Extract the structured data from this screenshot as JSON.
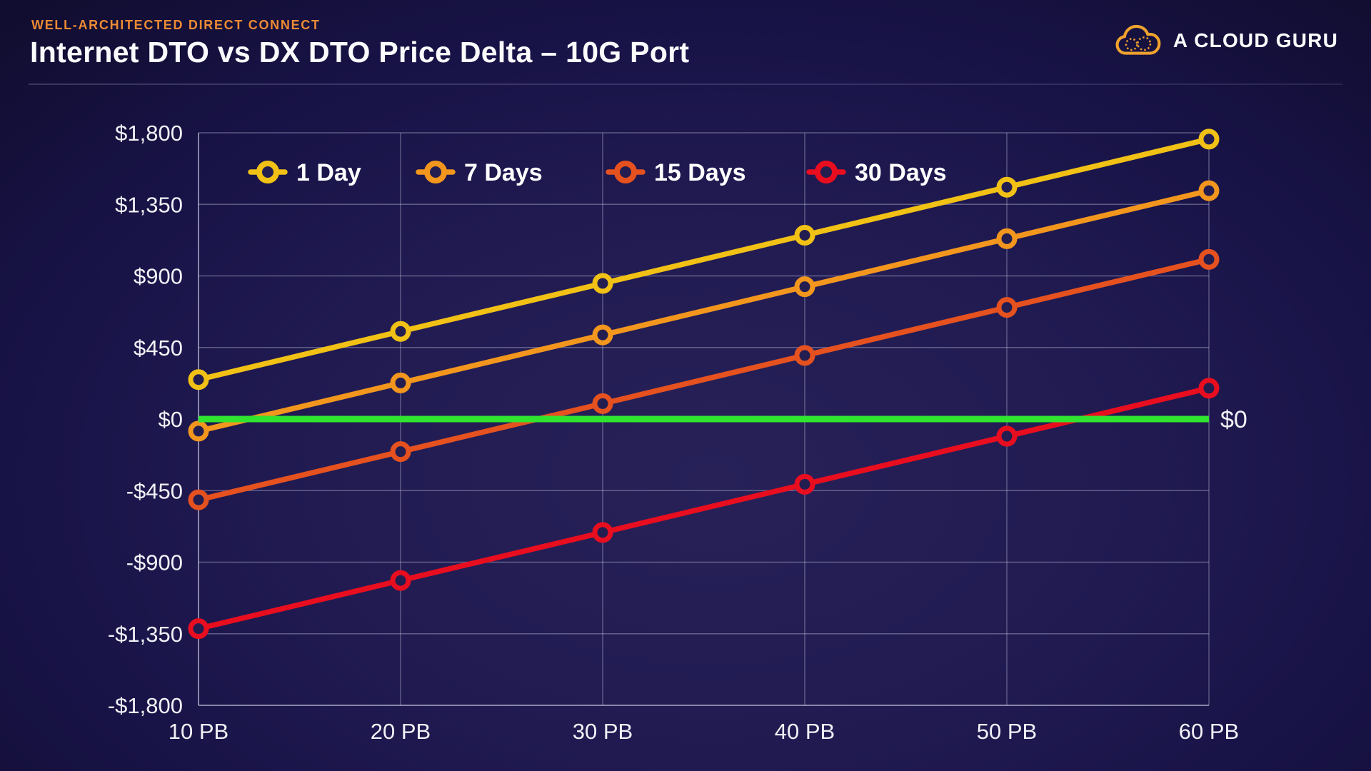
{
  "header": {
    "eyebrow": "WELL-ARCHITECTED DIRECT CONNECT",
    "title": "Internet DTO vs DX DTO Price Delta – 10G Port"
  },
  "logo": {
    "text": "A CLOUD GURU",
    "icon": "cloud-icon",
    "accent_color": "#f0a22e"
  },
  "chart_data": {
    "type": "line",
    "title": "Internet DTO vs DX DTO Price Delta – 10G Port",
    "xlabel": "",
    "ylabel": "",
    "x": [
      10,
      20,
      30,
      40,
      50,
      60
    ],
    "x_tick_labels": [
      "10 PB",
      "20 PB",
      "30 PB",
      "40 PB",
      "50 PB",
      "60 PB"
    ],
    "ylim": [
      -1800,
      1800
    ],
    "y_ticks": [
      1800,
      1350,
      900,
      450,
      0,
      -450,
      -900,
      -1350,
      -1800
    ],
    "y_tick_labels": [
      "$1,800",
      "$1,350",
      "$900",
      "$450",
      "$0",
      "-$450",
      "-$900",
      "-$1,350",
      "-$1,800"
    ],
    "grid": true,
    "legend_position": "top-inside",
    "series": [
      {
        "name": "1 Day",
        "color": "#f1c115",
        "values": [
          248,
          551,
          853,
          1156,
          1458,
          1760
        ]
      },
      {
        "name": "7 Days",
        "color": "#f2961e",
        "values": [
          -76,
          227,
          529,
          832,
          1134,
          1436
        ]
      },
      {
        "name": "15 Days",
        "color": "#e5511f",
        "values": [
          -508,
          -205,
          97,
          400,
          702,
          1004
        ]
      },
      {
        "name": "30 Days",
        "color": "#e80e1f",
        "values": [
          -1318,
          -1015,
          -713,
          -410,
          -108,
          194
        ]
      }
    ],
    "reference_line": {
      "value": 0,
      "color": "#30e430",
      "label": "$0"
    }
  },
  "style_colors": {
    "background_center": "#272158",
    "background_edge": "#110d30",
    "text": "#f2f1f6",
    "gridline": "#8c8cb0",
    "eyebrow": "#ed8a35"
  }
}
